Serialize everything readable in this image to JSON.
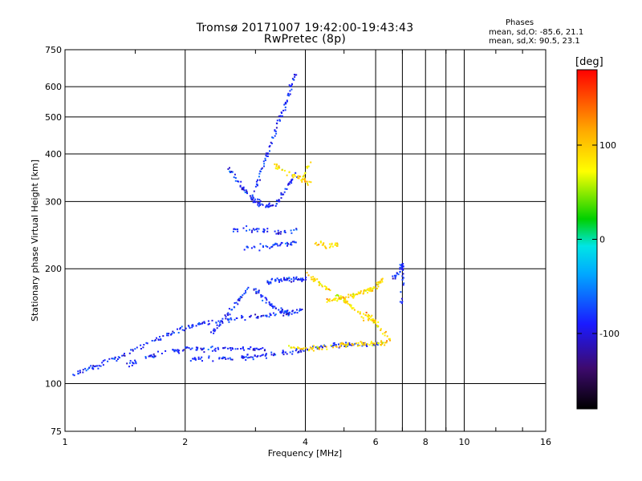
{
  "chart_data": {
    "type": "scatter",
    "title": "Tromsø 20171007 19:42:00-19:43:43",
    "subtitle": "RwPretec (8p)",
    "xlabel": "Frequency [MHz]",
    "ylabel": "Stationary phase Virtual Height [km]",
    "x_scale": "log",
    "y_scale": "log",
    "xlim": [
      1,
      16
    ],
    "ylim": [
      75,
      750
    ],
    "x_ticks": [
      1,
      2,
      4,
      6,
      8,
      10,
      16
    ],
    "x_tick_labels": [
      "1",
      "2",
      "4",
      "6",
      "8",
      "10",
      "16"
    ],
    "y_ticks": [
      75,
      100,
      200,
      300,
      400,
      500,
      600,
      750
    ],
    "y_tick_labels": [
      "75",
      "100",
      "200",
      "300",
      "400",
      "500",
      "600",
      "750"
    ],
    "grid": true,
    "colorbar": {
      "label": "[deg]",
      "ticks": [
        100,
        0,
        -100
      ],
      "tick_labels": [
        "100",
        "0",
        "-100"
      ],
      "range": [
        -180,
        180
      ],
      "colormap": [
        "#000000",
        "#3d0a6e",
        "#1a1aff",
        "#00aaff",
        "#00e5e5",
        "#00d000",
        "#ffff00",
        "#ffaa00",
        "#ff0000"
      ]
    },
    "phases_legend": {
      "heading": "Phases",
      "o_line": "mean, sd,O: -85.6, 21.1",
      "x_line": "mean, sd,X:  90.5, 23.1"
    },
    "series": [
      {
        "mode": "O",
        "phase_mean": -85.6,
        "phase_sd": 21.1,
        "segments": [
          {
            "f": [
              1.05,
              1.15,
              1.25,
              1.4,
              1.6,
              1.8,
              2.0,
              2.2,
              2.5,
              2.8,
              3.2,
              3.6,
              4.0
            ],
            "h": [
              107,
              110,
              114,
              120,
              128,
              135,
              141,
              145,
              147,
              150,
              152,
              154,
              157
            ]
          },
          {
            "f": [
              1.4,
              1.6,
              1.8,
              2.0,
              2.2,
              2.5,
              2.8,
              3.2
            ],
            "h": [
              112,
              118,
              122,
              124,
              124,
              124,
              124,
              124
            ]
          },
          {
            "f": [
              2.0,
              2.3,
              2.6,
              2.9,
              3.2,
              3.6,
              4.0,
              4.5,
              5.0,
              5.5,
              6.0
            ],
            "h": [
              117,
              117,
              117,
              118,
              119,
              121,
              124,
              126,
              127,
              127,
              128
            ]
          },
          {
            "f": [
              2.3,
              2.5,
              2.7,
              2.9,
              3.1,
              3.3,
              3.5,
              3.7
            ],
            "h": [
              135,
              148,
              165,
              182,
              170,
              160,
              155,
              152
            ]
          },
          {
            "f": [
              2.55,
              2.7,
              2.85,
              3.0,
              3.2,
              3.4,
              3.6,
              3.8
            ],
            "h": [
              370,
              340,
              315,
              300,
              292,
              300,
              330,
              360
            ]
          },
          {
            "f": [
              2.9,
              3.05,
              3.2,
              3.35,
              3.5,
              3.65,
              3.75
            ],
            "h": [
              300,
              350,
              400,
              460,
              520,
              590,
              650
            ]
          },
          {
            "f": [
              3.2,
              3.4,
              3.6,
              3.8,
              4.0
            ],
            "h": [
              185,
              188,
              188,
              188,
              190
            ]
          },
          {
            "f": [
              2.6,
              3.0,
              3.4,
              3.8
            ],
            "h": [
              255,
              255,
              250,
              255
            ]
          },
          {
            "f": [
              2.8,
              3.2,
              3.5,
              3.8
            ],
            "h": [
              228,
              230,
              233,
              236
            ]
          },
          {
            "f": [
              6.6,
              6.9,
              7.0,
              6.9
            ],
            "h": [
              190,
              200,
              206,
              160
            ]
          }
        ]
      },
      {
        "mode": "X",
        "phase_mean": 90.5,
        "phase_sd": 23.1,
        "segments": [
          {
            "f": [
              3.3,
              3.6,
              3.9,
              4.1
            ],
            "h": [
              375,
              360,
              345,
              335
            ]
          },
          {
            "f": [
              3.9,
              4.1
            ],
            "h": [
              340,
              385
            ]
          },
          {
            "f": [
              3.6,
              4.0,
              4.5,
              5.0,
              5.5,
              6.0,
              6.5
            ],
            "h": [
              126,
              124,
              125,
              127,
              128,
              128,
              129
            ]
          },
          {
            "f": [
              4.0,
              4.3,
              4.6,
              5.0,
              5.4,
              5.8,
              6.0
            ],
            "h": [
              196,
              185,
              175,
              165,
              155,
              150,
              145
            ]
          },
          {
            "f": [
              4.5,
              4.8,
              5.1,
              5.4,
              5.7,
              6.0,
              6.2
            ],
            "h": [
              165,
              168,
              170,
              173,
              176,
              180,
              188
            ]
          },
          {
            "f": [
              4.2,
              4.5,
              4.8
            ],
            "h": [
              235,
              230,
              232
            ]
          },
          {
            "f": [
              5.5,
              6.0,
              6.5
            ],
            "h": [
              150,
              145,
              130
            ]
          }
        ]
      }
    ]
  }
}
